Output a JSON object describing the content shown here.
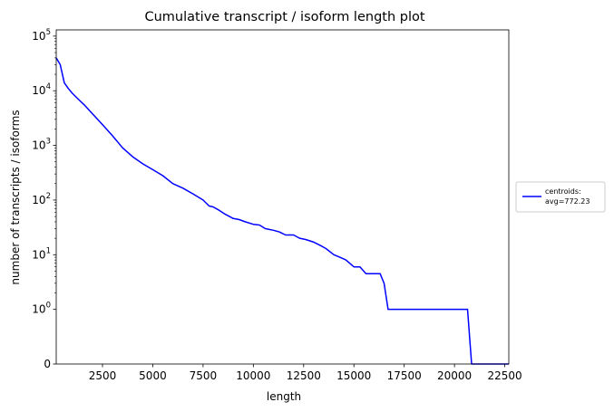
{
  "chart_data": {
    "type": "line",
    "title": "Cumulative transcript / isoform length plot",
    "xlabel": "length",
    "ylabel": "number of transcripts / isoforms",
    "yscale": "symlog",
    "xlim": [
      200,
      22700
    ],
    "ylim": [
      0,
      130000
    ],
    "grid": false,
    "x_ticks": [
      {
        "value": 2500,
        "label": "2500"
      },
      {
        "value": 5000,
        "label": "5000"
      },
      {
        "value": 7500,
        "label": "7500"
      },
      {
        "value": 10000,
        "label": "10000"
      },
      {
        "value": 12500,
        "label": "12500"
      },
      {
        "value": 15000,
        "label": "15000"
      },
      {
        "value": 17500,
        "label": "17500"
      },
      {
        "value": 20000,
        "label": "20000"
      },
      {
        "value": 22500,
        "label": "22500"
      }
    ],
    "y_ticks": [
      {
        "value": 0,
        "base": "0",
        "exp": ""
      },
      {
        "value": 1,
        "base": "10",
        "exp": "0"
      },
      {
        "value": 10,
        "base": "10",
        "exp": "1"
      },
      {
        "value": 100,
        "base": "10",
        "exp": "2"
      },
      {
        "value": 1000,
        "base": "10",
        "exp": "3"
      },
      {
        "value": 10000,
        "base": "10",
        "exp": "4"
      },
      {
        "value": 100000,
        "base": "10",
        "exp": "5"
      }
    ],
    "legend": {
      "placement": "right-outside",
      "entries": [
        {
          "label_line1": "centroids:",
          "label_line2": "avg=772.23",
          "color": "#0000ff"
        }
      ]
    },
    "series": [
      {
        "name": "centroids: avg=772.23",
        "color": "#0000ff",
        "x": [
          200,
          400,
          600,
          800,
          1000,
          1300,
          1600,
          2000,
          2500,
          3000,
          3500,
          4000,
          4500,
          5000,
          5500,
          6000,
          6500,
          7000,
          7500,
          7800,
          8000,
          8300,
          8600,
          9000,
          9300,
          9600,
          10000,
          10300,
          10600,
          11000,
          11300,
          11600,
          12000,
          12300,
          12600,
          13000,
          13300,
          13600,
          14000,
          14300,
          14600,
          15000,
          15300,
          15600,
          16000,
          16300,
          16500,
          16700,
          17000,
          17500,
          18000,
          18500,
          19000,
          19500,
          20000,
          20500,
          20650,
          20850,
          21200,
          22000,
          22700
        ],
        "y": [
          40000,
          30000,
          14000,
          11000,
          9000,
          7000,
          5500,
          3800,
          2400,
          1500,
          900,
          620,
          460,
          360,
          280,
          200,
          165,
          130,
          100,
          78,
          75,
          65,
          55,
          46,
          44,
          40,
          36,
          35,
          30,
          28,
          26,
          23,
          23,
          20,
          19,
          17,
          15,
          13,
          10,
          9,
          8,
          6,
          6,
          4.5,
          4.5,
          4.5,
          3,
          1,
          1,
          1,
          1,
          1,
          1,
          1,
          1,
          1,
          1,
          0,
          0,
          0,
          0
        ]
      }
    ]
  }
}
